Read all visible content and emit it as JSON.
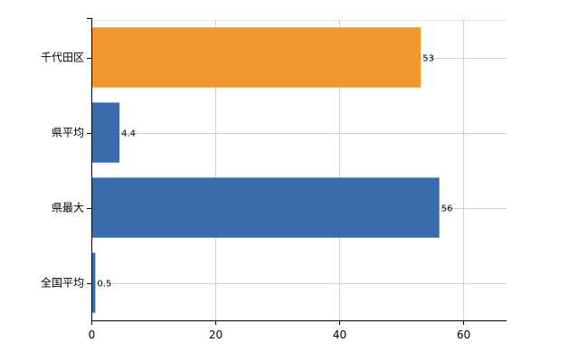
{
  "chart_data": {
    "type": "bar",
    "orientation": "horizontal",
    "categories": [
      "千代田区",
      "県平均",
      "県最大",
      "全国平均"
    ],
    "values": [
      53,
      4.4,
      56,
      0.5
    ],
    "data_labels": [
      "53",
      "4.4",
      "56",
      "0.5"
    ],
    "bar_colors": [
      "#F0962E",
      "#3A6CAD",
      "#3A6CAD",
      "#3A6CAD"
    ],
    "xlim": [
      0,
      67
    ],
    "x_ticks": [
      0,
      20,
      40,
      60
    ],
    "x_tick_labels": [
      "0",
      "20",
      "40",
      "60"
    ],
    "grid": true
  }
}
